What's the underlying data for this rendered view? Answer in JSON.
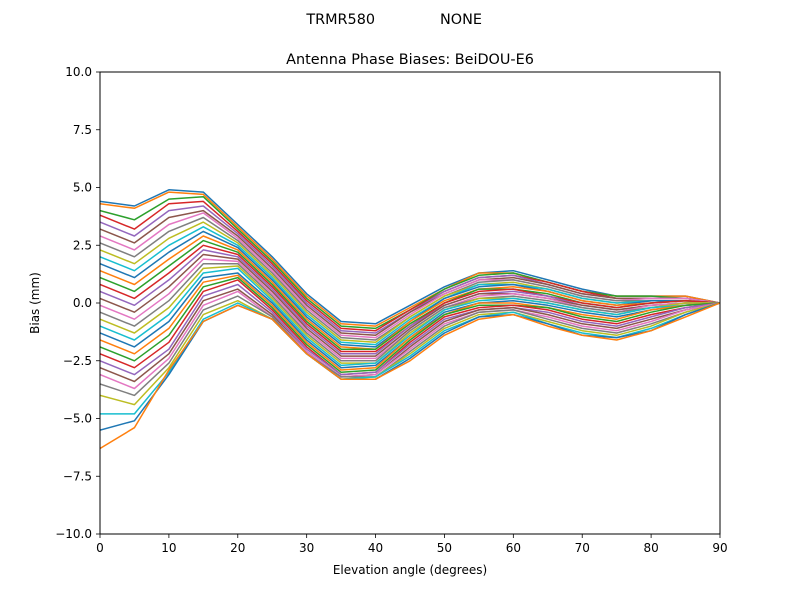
{
  "figure": {
    "suptitle_left": "TRMR580",
    "suptitle_right": "NONE"
  },
  "chart_data": {
    "type": "line",
    "title": "Antenna Phase Biases: BeiDOU-E6",
    "xlabel": "Elevation angle (degrees)",
    "ylabel": "Bias (mm)",
    "xlim": [
      0,
      90
    ],
    "ylim": [
      -10,
      10
    ],
    "xticks": [
      0,
      10,
      20,
      30,
      40,
      50,
      60,
      70,
      80,
      90
    ],
    "yticks": [
      -10.0,
      -7.5,
      -5.0,
      -2.5,
      0.0,
      2.5,
      5.0,
      7.5,
      10.0
    ],
    "ytick_labels": [
      "−10.0",
      "−7.5",
      "−5.0",
      "−2.5",
      "0.0",
      "2.5",
      "5.0",
      "7.5",
      "10.0"
    ],
    "grid": false,
    "legend": false,
    "x": [
      0,
      5,
      10,
      15,
      20,
      25,
      30,
      35,
      40,
      45,
      50,
      55,
      60,
      65,
      70,
      75,
      80,
      85,
      90
    ],
    "palette": [
      "#1f77b4",
      "#ff7f0e",
      "#2ca02c",
      "#d62728",
      "#9467bd",
      "#8c564b",
      "#e377c2",
      "#7f7f7f",
      "#bcbd22",
      "#17becf"
    ],
    "series_count_note_excluded": true,
    "series": [
      {
        "values": [
          4.4,
          4.2,
          4.9,
          4.8,
          3.4,
          2.0,
          0.4,
          -0.8,
          -0.9,
          -0.1,
          0.7,
          1.3,
          1.4,
          1.0,
          0.6,
          0.3,
          0.3,
          0.3,
          0.0
        ]
      },
      {
        "values": [
          4.3,
          4.1,
          4.8,
          4.7,
          3.3,
          1.9,
          0.3,
          -0.9,
          -1.0,
          -0.2,
          0.6,
          1.3,
          1.3,
          0.9,
          0.5,
          0.3,
          0.3,
          0.3,
          0.0
        ]
      },
      {
        "values": [
          4.0,
          3.6,
          4.5,
          4.6,
          3.2,
          1.8,
          0.2,
          -1.0,
          -1.1,
          -0.3,
          0.6,
          1.2,
          1.3,
          0.9,
          0.5,
          0.3,
          0.3,
          0.2,
          0.0
        ]
      },
      {
        "values": [
          3.8,
          3.2,
          4.3,
          4.4,
          3.1,
          1.7,
          0.1,
          -1.1,
          -1.2,
          -0.3,
          0.5,
          1.1,
          1.2,
          0.9,
          0.5,
          0.2,
          0.2,
          0.2,
          0.0
        ]
      },
      {
        "values": [
          3.5,
          2.9,
          4.0,
          4.2,
          3.0,
          1.6,
          0.0,
          -1.2,
          -1.3,
          -0.4,
          0.5,
          1.1,
          1.2,
          0.8,
          0.4,
          0.2,
          0.2,
          0.2,
          0.0
        ]
      },
      {
        "values": [
          3.2,
          2.6,
          3.7,
          4.0,
          2.9,
          1.5,
          -0.1,
          -1.3,
          -1.4,
          -0.4,
          0.4,
          1.0,
          1.1,
          0.8,
          0.4,
          0.2,
          0.2,
          0.2,
          0.0
        ]
      },
      {
        "values": [
          2.9,
          2.3,
          3.4,
          3.9,
          2.8,
          1.4,
          -0.2,
          -1.4,
          -1.5,
          -0.5,
          0.4,
          1.0,
          1.0,
          0.7,
          0.3,
          0.1,
          0.2,
          0.2,
          0.0
        ]
      },
      {
        "values": [
          2.6,
          2.0,
          3.1,
          3.7,
          2.7,
          1.3,
          -0.3,
          -1.5,
          -1.6,
          -0.6,
          0.3,
          0.9,
          1.0,
          0.7,
          0.3,
          0.1,
          0.1,
          0.1,
          0.0
        ]
      },
      {
        "values": [
          2.3,
          1.7,
          2.8,
          3.5,
          2.6,
          1.2,
          -0.4,
          -1.6,
          -1.7,
          -0.6,
          0.3,
          0.8,
          0.9,
          0.6,
          0.2,
          0.0,
          0.1,
          0.1,
          0.0
        ]
      },
      {
        "values": [
          2.0,
          1.4,
          2.5,
          3.3,
          2.5,
          1.1,
          -0.5,
          -1.7,
          -1.8,
          -0.7,
          0.2,
          0.8,
          0.8,
          0.6,
          0.2,
          0.0,
          0.1,
          0.1,
          0.0
        ]
      },
      {
        "values": [
          1.7,
          1.1,
          2.2,
          3.1,
          2.4,
          1.0,
          -0.6,
          -1.8,
          -1.9,
          -0.8,
          0.2,
          0.7,
          0.8,
          0.5,
          0.1,
          -0.1,
          0.1,
          0.1,
          0.0
        ]
      },
      {
        "values": [
          1.4,
          0.8,
          1.9,
          2.9,
          2.3,
          0.9,
          -0.7,
          -1.9,
          -2.0,
          -0.8,
          0.1,
          0.6,
          0.7,
          0.5,
          0.1,
          -0.1,
          0.0,
          0.1,
          0.0
        ]
      },
      {
        "values": [
          1.1,
          0.5,
          1.6,
          2.7,
          2.2,
          0.8,
          -0.8,
          -2.0,
          -2.0,
          -0.9,
          0.0,
          0.6,
          0.6,
          0.4,
          0.0,
          -0.2,
          0.0,
          0.1,
          0.0
        ]
      },
      {
        "values": [
          0.8,
          0.2,
          1.3,
          2.5,
          2.1,
          0.7,
          -0.9,
          -2.1,
          -2.1,
          -1.0,
          0.0,
          0.5,
          0.6,
          0.3,
          0.0,
          -0.2,
          0.0,
          0.1,
          0.0
        ]
      },
      {
        "values": [
          0.5,
          -0.1,
          1.0,
          2.3,
          2.0,
          0.6,
          -1.0,
          -2.2,
          -2.2,
          -1.0,
          -0.1,
          0.4,
          0.5,
          0.3,
          -0.1,
          -0.3,
          -0.1,
          0.0,
          0.0
        ]
      },
      {
        "values": [
          0.2,
          -0.4,
          0.7,
          2.1,
          1.9,
          0.5,
          -1.1,
          -2.3,
          -2.3,
          -1.1,
          -0.1,
          0.4,
          0.4,
          0.2,
          -0.1,
          -0.3,
          -0.1,
          0.0,
          0.0
        ]
      },
      {
        "values": [
          -0.1,
          -0.7,
          0.4,
          1.9,
          1.8,
          0.4,
          -1.2,
          -2.4,
          -2.4,
          -1.2,
          -0.2,
          0.3,
          0.4,
          0.2,
          -0.2,
          -0.4,
          -0.1,
          0.0,
          0.0
        ]
      },
      {
        "values": [
          -0.4,
          -1.0,
          0.1,
          1.7,
          1.7,
          0.3,
          -1.3,
          -2.5,
          -2.5,
          -1.2,
          -0.2,
          0.2,
          0.3,
          0.1,
          -0.2,
          -0.4,
          -0.2,
          0.0,
          0.0
        ]
      },
      {
        "values": [
          -0.7,
          -1.3,
          -0.2,
          1.5,
          1.6,
          0.2,
          -1.4,
          -2.6,
          -2.6,
          -1.3,
          -0.3,
          0.2,
          0.2,
          0.0,
          -0.3,
          -0.5,
          -0.2,
          0.0,
          0.0
        ]
      },
      {
        "values": [
          -1.0,
          -1.6,
          -0.5,
          1.3,
          1.5,
          0.1,
          -1.5,
          -2.7,
          -2.6,
          -1.4,
          -0.3,
          0.1,
          0.2,
          0.0,
          -0.3,
          -0.5,
          -0.2,
          -0.1,
          0.0
        ]
      },
      {
        "values": [
          -1.3,
          -1.9,
          -0.8,
          1.1,
          1.3,
          0.0,
          -1.6,
          -2.8,
          -2.7,
          -1.5,
          -0.4,
          0.0,
          0.1,
          -0.1,
          -0.4,
          -0.6,
          -0.3,
          -0.1,
          0.0
        ]
      },
      {
        "values": [
          -1.6,
          -2.2,
          -1.1,
          0.9,
          1.2,
          -0.1,
          -1.7,
          -2.9,
          -2.8,
          -1.5,
          -0.5,
          0.0,
          0.0,
          -0.2,
          -0.5,
          -0.7,
          -0.3,
          -0.1,
          0.0
        ]
      },
      {
        "values": [
          -1.9,
          -2.5,
          -1.4,
          0.7,
          1.1,
          -0.2,
          -1.8,
          -3.0,
          -2.9,
          -1.6,
          -0.5,
          -0.1,
          -0.1,
          -0.2,
          -0.6,
          -0.8,
          -0.4,
          -0.1,
          0.0
        ]
      },
      {
        "values": [
          -2.2,
          -2.8,
          -1.7,
          0.5,
          1.0,
          -0.3,
          -1.9,
          -3.1,
          -3.0,
          -1.7,
          -0.6,
          -0.2,
          -0.1,
          -0.3,
          -0.7,
          -0.9,
          -0.5,
          -0.2,
          0.0
        ]
      },
      {
        "values": [
          -2.5,
          -3.1,
          -2.0,
          0.3,
          0.8,
          -0.4,
          -2.0,
          -3.1,
          -3.0,
          -1.8,
          -0.7,
          -0.3,
          -0.2,
          -0.4,
          -0.8,
          -1.0,
          -0.6,
          -0.2,
          0.0
        ]
      },
      {
        "values": [
          -2.8,
          -3.4,
          -2.2,
          0.1,
          0.6,
          -0.5,
          -2.1,
          -3.2,
          -3.1,
          -1.9,
          -0.8,
          -0.3,
          -0.2,
          -0.5,
          -0.9,
          -1.1,
          -0.7,
          -0.3,
          0.0
        ]
      },
      {
        "values": [
          -3.1,
          -3.7,
          -2.4,
          -0.1,
          0.5,
          -0.6,
          -2.1,
          -3.2,
          -3.1,
          -2.0,
          -0.9,
          -0.4,
          -0.3,
          -0.6,
          -1.0,
          -1.2,
          -0.8,
          -0.3,
          0.0
        ]
      },
      {
        "values": [
          -3.5,
          -4.0,
          -2.6,
          -0.3,
          0.3,
          -0.6,
          -2.2,
          -3.2,
          -3.2,
          -2.1,
          -1.0,
          -0.4,
          -0.3,
          -0.7,
          -1.1,
          -1.3,
          -0.9,
          -0.4,
          0.0
        ]
      },
      {
        "values": [
          -4.0,
          -4.4,
          -2.8,
          -0.5,
          0.1,
          -0.7,
          -2.2,
          -3.3,
          -3.2,
          -2.2,
          -1.1,
          -0.5,
          -0.4,
          -0.8,
          -1.2,
          -1.4,
          -1.0,
          -0.4,
          0.0
        ]
      },
      {
        "values": [
          -4.8,
          -4.8,
          -3.0,
          -0.7,
          0.0,
          -0.7,
          -2.2,
          -3.3,
          -3.2,
          -2.3,
          -1.2,
          -0.6,
          -0.4,
          -0.9,
          -1.3,
          -1.5,
          -1.1,
          -0.5,
          0.0
        ]
      },
      {
        "values": [
          -5.5,
          -5.1,
          -3.1,
          -0.8,
          -0.1,
          -0.7,
          -2.2,
          -3.3,
          -3.3,
          -2.4,
          -1.3,
          -0.6,
          -0.5,
          -0.9,
          -1.4,
          -1.5,
          -1.2,
          -0.5,
          0.0
        ]
      },
      {
        "values": [
          -6.3,
          -5.4,
          -2.9,
          -0.8,
          -0.1,
          -0.7,
          -2.2,
          -3.3,
          -3.3,
          -2.5,
          -1.4,
          -0.7,
          -0.5,
          -1.0,
          -1.4,
          -1.6,
          -1.2,
          -0.6,
          0.0
        ]
      }
    ]
  }
}
